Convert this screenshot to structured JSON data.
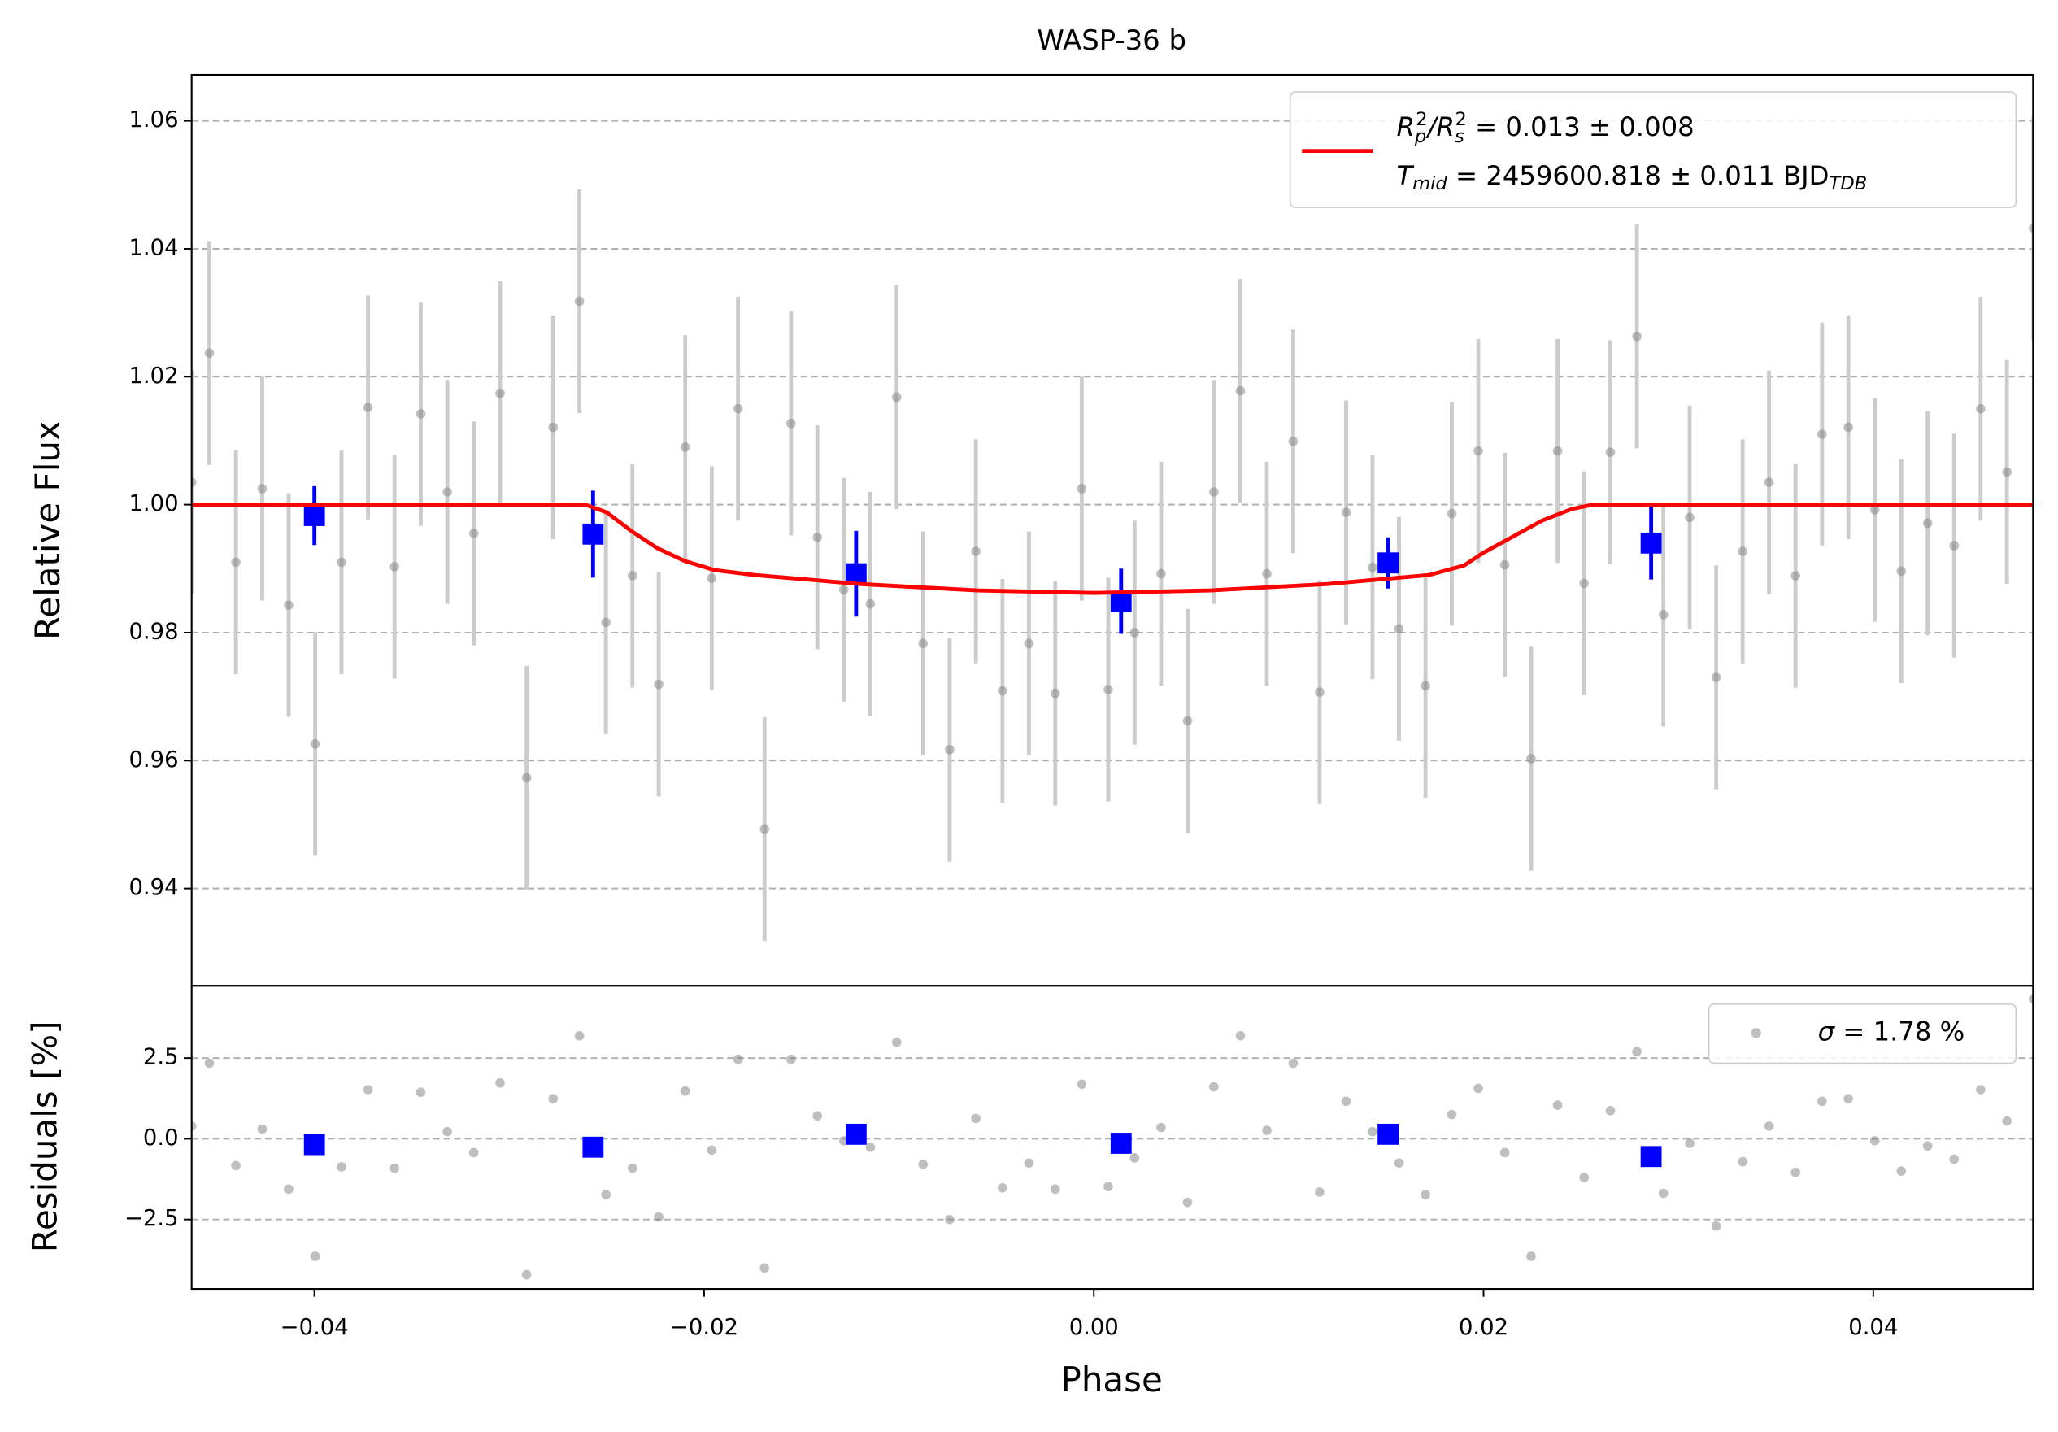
{
  "chart_data": [
    {
      "type": "scatter",
      "title": "WASP-36 b",
      "y_label": "Relative Flux",
      "xlim": [
        -0.0463,
        0.0482
      ],
      "ylim": [
        0.9248,
        1.0672
      ],
      "yticks": [
        0.94,
        0.96,
        0.98,
        {
          "value": 1,
          "label": "1.00"
        },
        1.02,
        1.04,
        1.06
      ],
      "grid": "y",
      "legend_position": "upper right",
      "series": [
        {
          "marker": "circle",
          "color": "#808080",
          "error_color": "#cccccc",
          "error": 0.0175,
          "x": [
            -0.0463,
            -0.04539,
            -0.04403,
            -0.04268,
            -0.04132,
            -0.03996,
            -0.03861,
            -0.03725,
            -0.03589,
            -0.03454,
            -0.03318,
            -0.03182,
            -0.03047,
            -0.02911,
            -0.02775,
            -0.0264,
            -0.02504,
            -0.02368,
            -0.02233,
            -0.02097,
            -0.01961,
            -0.01826,
            -0.0169,
            -0.01554,
            -0.01419,
            -0.01283,
            -0.01147,
            -0.01012,
            -0.00876,
            -0.0074,
            -0.00605,
            -0.00469,
            -0.00333,
            -0.00198,
            -0.00062,
            0.00074,
            0.00209,
            0.00345,
            0.00481,
            0.00616,
            0.00752,
            0.00888,
            0.01023,
            0.01159,
            0.01295,
            0.0143,
            0.01566,
            0.01702,
            0.01837,
            0.01973,
            0.02109,
            0.02244,
            0.0238,
            0.02516,
            0.02651,
            0.02787,
            0.02923,
            0.03058,
            0.03194,
            0.0333,
            0.03465,
            0.03601,
            0.03737,
            0.03872,
            0.04008,
            0.04144,
            0.04279,
            0.04415,
            0.04551,
            0.04686,
            0.04822
          ],
          "values": [
            1.0035,
            1.0237,
            0.991,
            1.0025,
            0.9843,
            0.9626,
            0.991,
            1.0152,
            0.9903,
            1.0142,
            1.002,
            0.9955,
            1.0174,
            0.9573,
            1.0121,
            1.0318,
            0.9816,
            0.9889,
            0.9719,
            1.009,
            0.9885,
            1.015,
            0.9493,
            1.0127,
            0.9949,
            0.9867,
            0.9845,
            1.0168,
            0.9783,
            0.9617,
            0.9927,
            0.9709,
            0.9783,
            0.9705,
            1.0025,
            0.9711,
            0.98,
            0.9892,
            0.9662,
            1.002,
            1.0178,
            0.9892,
            1.0099,
            0.9707,
            0.9988,
            0.9902,
            0.9806,
            0.9717,
            0.9986,
            1.0084,
            0.9906,
            0.9603,
            1.0084,
            0.9877,
            1.0082,
            1.0263,
            0.9828,
            0.998,
            0.973,
            0.9927,
            1.0035,
            0.9889,
            1.011,
            1.0121,
            0.9992,
            0.9896,
            0.9971,
            0.9936,
            1.015,
            1.0051,
            1.0432
          ]
        },
        {
          "marker": "square",
          "color": "#0000ff",
          "x": [
            -0.04,
            -0.0257,
            -0.0122,
            0.0014,
            0.0151,
            0.0286
          ],
          "values": [
            0.9983,
            0.9954,
            0.9892,
            0.9849,
            0.9909,
            0.994
          ],
          "errors": [
            0.0046,
            0.0068,
            0.0067,
            0.0051,
            0.004,
            0.0057
          ]
        },
        {
          "marker": "line",
          "color": "#ff0000",
          "name_parts": [
            [
              "R",
              "p",
              "2",
              "/R",
              "s",
              "2",
              " = 0.013 ± 0.008"
            ],
            [
              "T",
              "mid",
              " = 2459600.818 ± 0.011 BJD",
              "TDB"
            ]
          ],
          "x": [
            -0.0463,
            -0.0261,
            -0.025,
            -0.0237,
            -0.0224,
            -0.021,
            -0.0195,
            -0.0174,
            -0.012,
            -0.006,
            0,
            0.006,
            0.012,
            0.0172,
            0.019,
            0.02,
            0.0215,
            0.023,
            0.0245,
            0.0256,
            0.0482
          ],
          "values": [
            1,
            1,
            0.9988,
            0.9958,
            0.9932,
            0.9912,
            0.9898,
            0.989,
            0.9876,
            0.9866,
            0.9862,
            0.9866,
            0.9876,
            0.989,
            0.9905,
            0.9925,
            0.995,
            0.9975,
            0.9993,
            1,
            1
          ]
        }
      ]
    },
    {
      "type": "scatter",
      "x_label": "Phase",
      "y_label": "Residuals [%]",
      "xlim": [
        -0.0463,
        0.0482
      ],
      "ylim": [
        -4.65,
        4.74
      ],
      "xticks": [
        {
          "value": -0.04,
          "label": "−0.04"
        },
        {
          "value": -0.02,
          "label": "−0.02"
        },
        {
          "value": 0,
          "label": "0.00"
        },
        0.02,
        0.04
      ],
      "yticks": [
        {
          "value": -2.5,
          "label": "−2.5"
        },
        {
          "value": 0,
          "label": "0.0"
        },
        2.5
      ],
      "grid": "y",
      "legend_position": "upper right",
      "series": [
        {
          "marker": "circle",
          "color": "#808080",
          "name_parts": [
            [
              "σ",
              " = 1.78 %"
            ]
          ],
          "x": [
            -0.0463,
            -0.04539,
            -0.04403,
            -0.04268,
            -0.04132,
            -0.03996,
            -0.03861,
            -0.03725,
            -0.03589,
            -0.03454,
            -0.03318,
            -0.03182,
            -0.03047,
            -0.02911,
            -0.02775,
            -0.0264,
            -0.02504,
            -0.02368,
            -0.02233,
            -0.02097,
            -0.01961,
            -0.01826,
            -0.0169,
            -0.01554,
            -0.01419,
            -0.01283,
            -0.01147,
            -0.01012,
            -0.00876,
            -0.0074,
            -0.00605,
            -0.00469,
            -0.00333,
            -0.00198,
            -0.00062,
            0.00074,
            0.00209,
            0.00345,
            0.00481,
            0.00616,
            0.00752,
            0.00888,
            0.01023,
            0.01159,
            0.01295,
            0.0143,
            0.01566,
            0.01702,
            0.01837,
            0.01973,
            0.02109,
            0.02244,
            0.0238,
            0.02516,
            0.02651,
            0.02787,
            0.02923,
            0.03058,
            0.03194,
            0.0333,
            0.03465,
            0.03601,
            0.03737,
            0.03872,
            0.04008,
            0.04144,
            0.04279,
            0.04415,
            0.04551,
            0.04686,
            0.04822
          ],
          "values": [
            0.39,
            2.34,
            -0.83,
            0.3,
            -1.56,
            -3.64,
            -0.87,
            1.52,
            -0.91,
            1.44,
            0.22,
            -0.43,
            1.73,
            -4.21,
            1.24,
            3.19,
            -1.73,
            -0.91,
            -2.42,
            1.48,
            -0.35,
            2.46,
            -4.0,
            2.46,
            0.71,
            -0.06,
            -0.26,
            2.99,
            -0.79,
            -2.5,
            0.63,
            -1.52,
            -0.75,
            -1.56,
            1.69,
            -1.48,
            -0.59,
            0.35,
            -1.97,
            1.61,
            3.19,
            0.26,
            2.34,
            -1.65,
            1.16,
            0.22,
            -0.75,
            -1.73,
            0.75,
            1.56,
            -0.43,
            -3.64,
            1.04,
            -1.2,
            0.87,
            2.7,
            -1.69,
            -0.14,
            -2.7,
            -0.71,
            0.39,
            -1.04,
            1.16,
            1.24,
            -0.06,
            -1.0,
            -0.22,
            -0.63,
            1.52,
            0.55,
            4.33
          ]
        },
        {
          "marker": "square",
          "color": "#0000ff",
          "x": [
            -0.04,
            -0.0257,
            -0.0122,
            0.0014,
            0.0151,
            0.0286
          ],
          "values": [
            -0.18,
            -0.26,
            0.14,
            -0.14,
            0.14,
            -0.55
          ]
        }
      ]
    }
  ]
}
